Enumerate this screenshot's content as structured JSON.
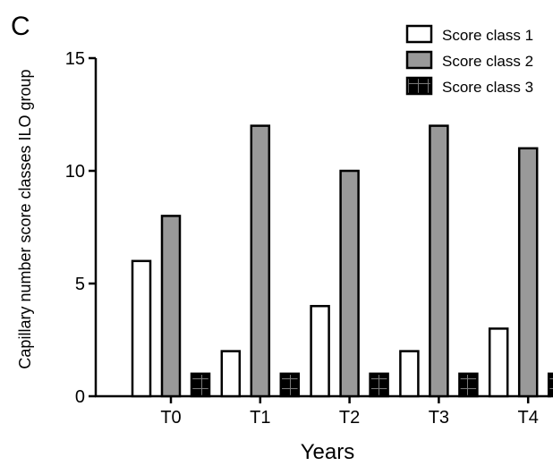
{
  "panel_label": "C",
  "chart_data": {
    "type": "bar",
    "title": "",
    "xlabel": "Years",
    "ylabel": "Capillary number score classes ILO group",
    "categories": [
      "T0",
      "T1",
      "T2",
      "T3",
      "T4"
    ],
    "ylim": [
      0,
      15
    ],
    "yticks": [
      0,
      5,
      10,
      15
    ],
    "grid": false,
    "legend_position": "top-right",
    "series": [
      {
        "name": "Score class 1",
        "values": [
          6,
          2,
          4,
          2,
          3
        ],
        "fill": "#ffffff",
        "pattern": "solid"
      },
      {
        "name": "Score class 2",
        "values": [
          8,
          12,
          10,
          12,
          11
        ],
        "fill": "#999999",
        "pattern": "solid"
      },
      {
        "name": "Score class 3",
        "values": [
          1,
          1,
          1,
          1,
          1
        ],
        "fill": "#000000",
        "pattern": "grid"
      }
    ]
  }
}
